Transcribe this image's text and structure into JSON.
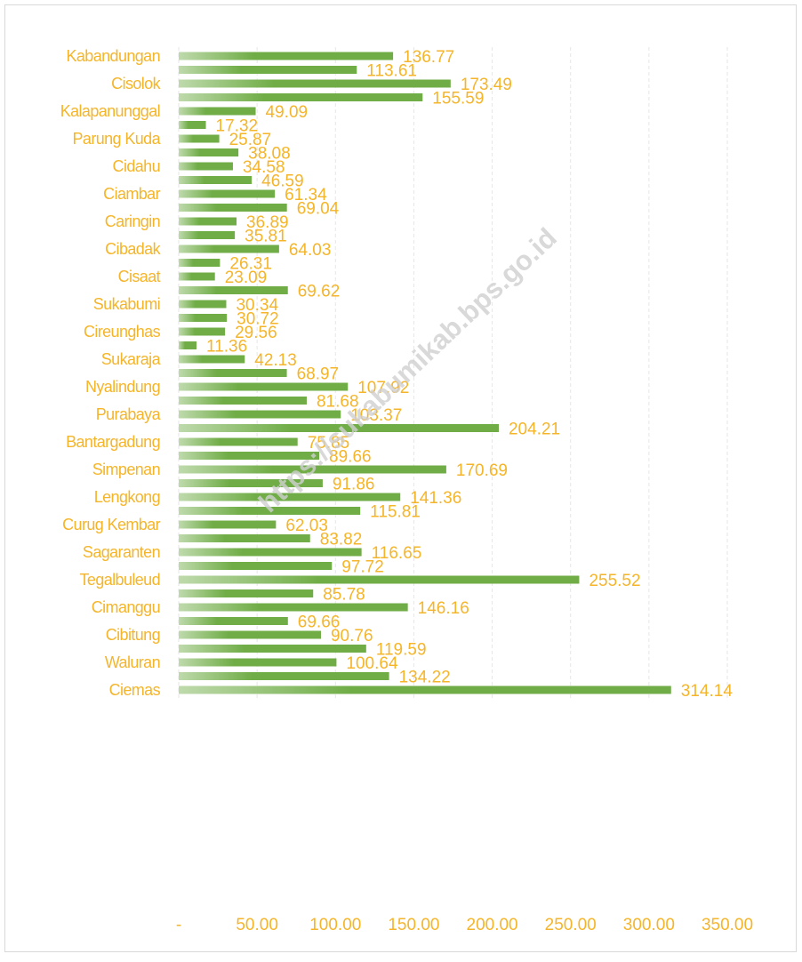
{
  "chart_data": {
    "type": "bar",
    "orientation": "horizontal",
    "watermark": "https://sukabumikab.bps.go.id",
    "categories": [
      "Kabandungan",
      null,
      "Cisolok",
      null,
      "Kalapanunggal",
      null,
      "Parung Kuda",
      null,
      "Cidahu",
      null,
      "Ciambar",
      null,
      "Caringin",
      null,
      "Cibadak",
      null,
      "Cisaat",
      null,
      "Sukabumi",
      null,
      "Cireunghas",
      null,
      "Sukaraja",
      null,
      "Nyalindung",
      null,
      "Purabaya",
      null,
      "Bantargadung",
      null,
      "Simpenan",
      null,
      "Lengkong",
      null,
      "Curug Kembar",
      null,
      "Sagaranten",
      null,
      "Tegalbuleud",
      null,
      "Cimanggu",
      null,
      "Cibitung",
      null,
      "Waluran",
      null,
      "Ciemas"
    ],
    "values": [
      136.77,
      113.61,
      173.49,
      155.59,
      49.09,
      17.32,
      25.87,
      38.08,
      34.58,
      46.59,
      61.34,
      69.04,
      36.89,
      35.81,
      64.03,
      26.31,
      23.09,
      69.62,
      30.34,
      30.72,
      29.56,
      11.36,
      42.13,
      68.97,
      107.92,
      81.68,
      103.37,
      204.21,
      75.85,
      89.66,
      170.69,
      91.86,
      141.36,
      115.81,
      62.03,
      83.82,
      116.65,
      97.72,
      255.52,
      85.78,
      146.16,
      69.66,
      90.76,
      119.59,
      100.64,
      134.22,
      314.14
    ],
    "color": "#70ad47",
    "xlim": [
      0,
      350
    ],
    "xticks": [
      {
        "value": 0,
        "label": "-"
      },
      {
        "value": 50,
        "label": "50.00"
      },
      {
        "value": 100,
        "label": "100.00"
      },
      {
        "value": 150,
        "label": "150.00"
      },
      {
        "value": 200,
        "label": "200.00"
      },
      {
        "value": 250,
        "label": "250.00"
      },
      {
        "value": 300,
        "label": "300.00"
      },
      {
        "value": 350,
        "label": "350.00"
      }
    ],
    "grid": true
  }
}
